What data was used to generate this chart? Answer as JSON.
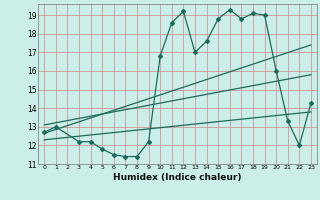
{
  "title": "",
  "xlabel": "Humidex (Indice chaleur)",
  "ylabel": "",
  "xlim": [
    -0.5,
    23.5
  ],
  "ylim": [
    11.0,
    19.6
  ],
  "yticks": [
    11,
    12,
    13,
    14,
    15,
    16,
    17,
    18,
    19
  ],
  "xticks": [
    0,
    1,
    2,
    3,
    4,
    5,
    6,
    7,
    8,
    9,
    10,
    11,
    12,
    13,
    14,
    15,
    16,
    17,
    18,
    19,
    20,
    21,
    22,
    23
  ],
  "bg_color": "#cceee8",
  "grid_color": "#cc9999",
  "line_color": "#1a6b5a",
  "line1_x": [
    0,
    1,
    3,
    4,
    5,
    6,
    7,
    8,
    9,
    10,
    11,
    12,
    13,
    14,
    15,
    16,
    17,
    18,
    19,
    20,
    21,
    22,
    23
  ],
  "line1_y": [
    12.7,
    13.0,
    12.2,
    12.2,
    11.8,
    11.5,
    11.4,
    11.4,
    12.2,
    16.8,
    18.6,
    19.2,
    17.0,
    17.6,
    18.8,
    19.3,
    18.8,
    19.1,
    19.0,
    16.0,
    13.3,
    12.0,
    14.3
  ],
  "line2_x": [
    0,
    23
  ],
  "line2_y": [
    12.65,
    17.4
  ],
  "line3_x": [
    0,
    23
  ],
  "line3_y": [
    13.1,
    15.8
  ],
  "line4_x": [
    0,
    23
  ],
  "line4_y": [
    12.3,
    13.8
  ]
}
